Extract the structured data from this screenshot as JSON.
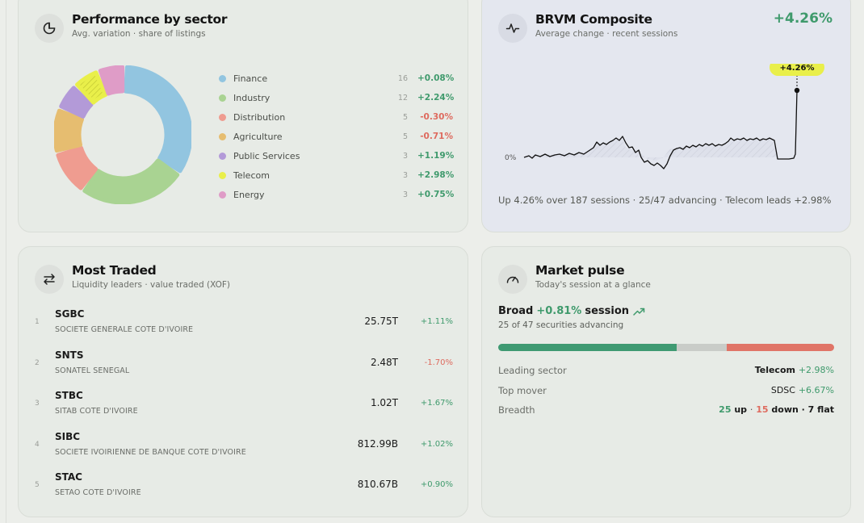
{
  "sector": {
    "title": "Performance by sector",
    "subtitle": "Avg. variation · share of listings",
    "items": [
      {
        "name": "Finance",
        "count": "16",
        "change": "+0.08%",
        "color": "#92c5e0",
        "dir": "pos"
      },
      {
        "name": "Industry",
        "count": "12",
        "change": "+2.24%",
        "color": "#a9d392",
        "dir": "pos"
      },
      {
        "name": "Distribution",
        "count": "5",
        "change": "-0.30%",
        "color": "#ef9c90",
        "dir": "neg"
      },
      {
        "name": "Agriculture",
        "count": "5",
        "change": "-0.71%",
        "color": "#e6bd70",
        "dir": "neg"
      },
      {
        "name": "Public Services",
        "count": "3",
        "change": "+1.19%",
        "color": "#b39ad8",
        "dir": "pos"
      },
      {
        "name": "Telecom",
        "count": "3",
        "change": "+2.98%",
        "color": "#e9ef4a",
        "dir": "pos"
      },
      {
        "name": "Energy",
        "count": "3",
        "change": "+0.75%",
        "color": "#df9cc7",
        "dir": "pos"
      }
    ]
  },
  "brvm": {
    "title": "BRVM Composite",
    "subtitle": "Average change · recent sessions",
    "change": "+4.26%",
    "badge": "+4.26%",
    "zero_label": "0%",
    "footer": "Up 4.26% over 187 sessions · 25/47 advancing · Telecom leads +2.98%"
  },
  "traded": {
    "title": "Most Traded",
    "subtitle": "Liquidity leaders · value traded (XOF)",
    "rows": [
      {
        "rank": "1",
        "symbol": "SGBC",
        "name": "SOCIETE GENERALE COTE D'IVOIRE",
        "value": "25.75T",
        "change": "+1.11%",
        "dir": "pos"
      },
      {
        "rank": "2",
        "symbol": "SNTS",
        "name": "SONATEL SENEGAL",
        "value": "2.48T",
        "change": "-1.70%",
        "dir": "neg"
      },
      {
        "rank": "3",
        "symbol": "STBC",
        "name": "SITAB COTE D'IVOIRE",
        "value": "1.02T",
        "change": "+1.67%",
        "dir": "pos"
      },
      {
        "rank": "4",
        "symbol": "SIBC",
        "name": "SOCIETE IVOIRIENNE DE BANQUE COTE D'IVOIRE",
        "value": "812.99B",
        "change": "+1.02%",
        "dir": "pos"
      },
      {
        "rank": "5",
        "symbol": "STAC",
        "name": "SETAO COTE D'IVOIRE",
        "value": "810.67B",
        "change": "+0.90%",
        "dir": "pos"
      }
    ]
  },
  "pulse": {
    "title": "Market pulse",
    "subtitle": "Today's session at a glance",
    "main_prefix": "Broad",
    "main_change": "+0.81%",
    "main_suffix": "session",
    "sub": "25 of 47 securities advancing",
    "bar": {
      "up": 25,
      "flat": 7,
      "down": 15
    },
    "colors": {
      "up": "#3f9a72",
      "flat": "#c9ccc8",
      "down": "#e07467"
    },
    "leading_label": "Leading sector",
    "leading_name": "Telecom",
    "leading_change": "+2.98%",
    "mover_label": "Top mover",
    "mover_name": "SDSC",
    "mover_change": "+6.67%",
    "breadth_label": "Breadth",
    "breadth_up": "25",
    "breadth_up_word": "up",
    "breadth_down": "15",
    "breadth_down_word": "down",
    "breadth_flat": "· 7 flat"
  }
}
